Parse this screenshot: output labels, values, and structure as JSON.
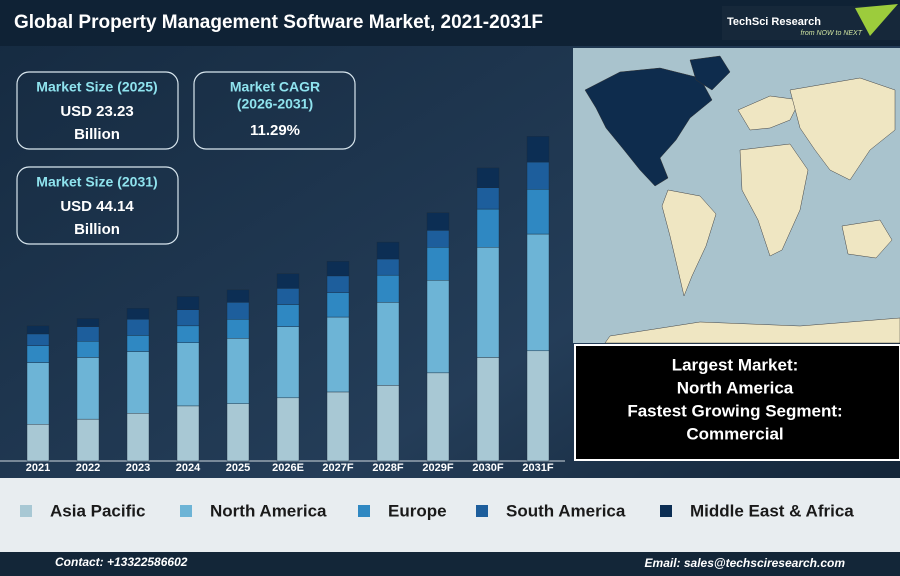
{
  "header": {
    "title": "Global Property Management Software Market, 2021-2031F",
    "logo": "TechSci Research",
    "tagline": "from NOW to NEXT"
  },
  "kpis": [
    {
      "label": "Market Size (2025)",
      "value": "USD 23.23",
      "unit": "Billion"
    },
    {
      "label": "Market CAGR",
      "period": "(2026-2031)",
      "value": "11.29%"
    },
    {
      "label": "Market Size (2031)",
      "value": "USD 44.14",
      "unit": "Billion"
    }
  ],
  "highlight": [
    "Largest Market:",
    "North America",
    "Fastest Growing Segment:",
    "Commercial"
  ],
  "footer": {
    "contact": "Contact: +13322586602",
    "email": "Email: sales@techsciresearch.com"
  },
  "chart_data": {
    "type": "bar",
    "stacked": true,
    "categories": [
      "2021",
      "2022",
      "2023",
      "2024",
      "2025",
      "2026E",
      "2027F",
      "2028F",
      "2029F",
      "2030F",
      "2031F"
    ],
    "series": [
      {
        "name": "Asia Pacific",
        "color": "#a8c8d4",
        "values": [
          5.0,
          5.7,
          6.5,
          7.5,
          7.8,
          8.6,
          9.4,
          10.3,
          12.0,
          14.1,
          15.0
        ]
      },
      {
        "name": "North America",
        "color": "#6db4d6",
        "values": [
          8.4,
          8.4,
          8.4,
          8.6,
          8.9,
          9.7,
          10.2,
          11.3,
          12.6,
          15.0,
          15.9
        ]
      },
      {
        "name": "Europe",
        "color": "#2f88c2",
        "values": [
          2.3,
          2.2,
          2.2,
          2.3,
          2.6,
          3.0,
          3.3,
          3.7,
          4.5,
          5.2,
          6.1
        ]
      },
      {
        "name": "South America",
        "color": "#1d5e9c",
        "values": [
          1.6,
          2.0,
          2.2,
          2.2,
          2.3,
          2.2,
          2.3,
          2.2,
          2.3,
          2.9,
          3.7
        ]
      },
      {
        "name": "Middle East & Africa",
        "color": "#0c2e54",
        "values": [
          1.1,
          1.1,
          1.5,
          1.8,
          1.7,
          2.0,
          2.0,
          2.3,
          2.4,
          2.7,
          3.5
        ]
      }
    ],
    "ylim": [
      0,
      55
    ]
  }
}
